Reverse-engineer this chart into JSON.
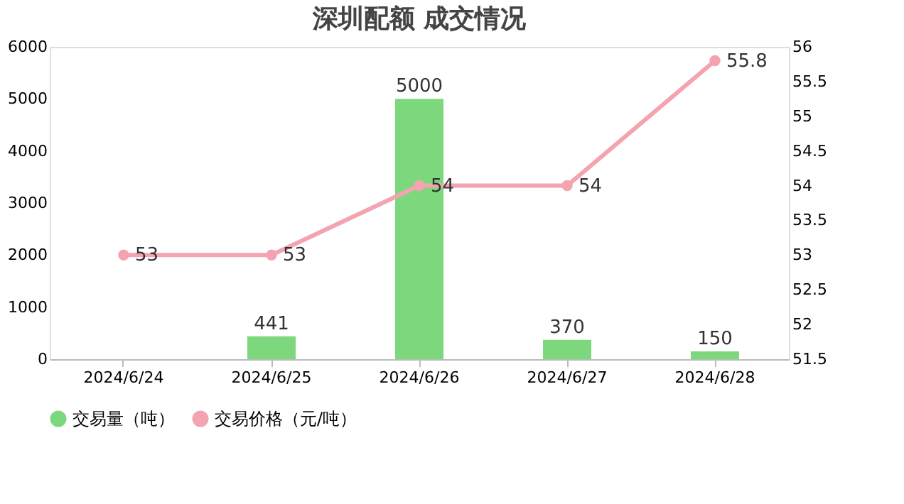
{
  "chart_data": {
    "type": "bar",
    "title": "深圳配额 成交情况",
    "categories": [
      "2024/6/24",
      "2024/6/25",
      "2024/6/26",
      "2024/6/27",
      "2024/6/28"
    ],
    "series": [
      {
        "name": "交易量（吨）",
        "color": "#7dd87d",
        "values": [
          null,
          441,
          5000,
          370,
          150
        ],
        "value_labels": [
          null,
          "441",
          "5000",
          "370",
          "150"
        ]
      },
      {
        "name": "交易价格（元/吨）",
        "type": "line",
        "axis": "y2",
        "color": "#f4a3b0",
        "values": [
          53,
          53,
          54,
          54,
          55.8
        ],
        "value_labels": [
          "53",
          "53",
          "54",
          "54",
          "55.8"
        ]
      }
    ],
    "ylim": [
      0,
      6000
    ],
    "yticks": [
      0,
      1000,
      2000,
      3000,
      4000,
      5000,
      6000
    ],
    "y2lim": [
      51.5,
      56
    ],
    "y2ticks": [
      51.5,
      52,
      52.5,
      53,
      53.5,
      54,
      54.5,
      55,
      55.5,
      56
    ],
    "legend": "bottom",
    "marker": "circle",
    "line_style": "solid",
    "grid": false
  }
}
